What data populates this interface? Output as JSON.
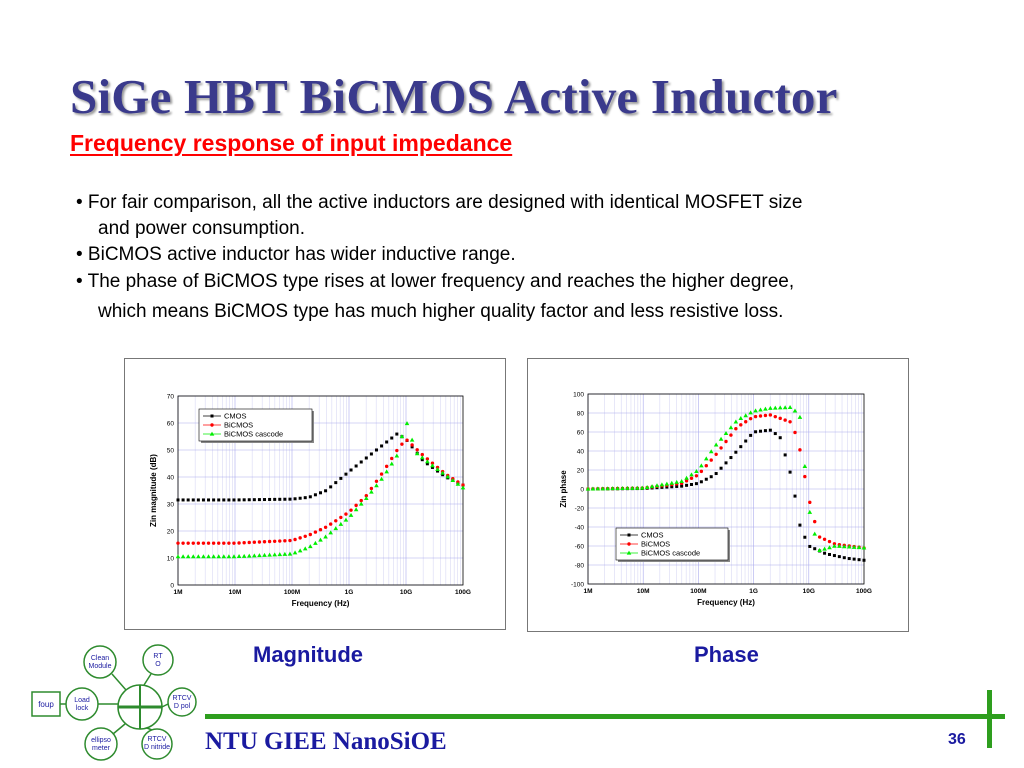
{
  "slide": {
    "title": "SiGe HBT BiCMOS Active Inductor",
    "subtitle": "Frequency response of input impedance",
    "bullets": [
      "• For fair comparison, all the active inductors are designed with identical MOSFET size",
      "and power consumption.",
      "• BiCMOS active inductor has wider inductive range.",
      "• The phase of BiCMOS type rises at lower frequency and reaches the higher degree,",
      "which means BiCMOS type has much higher quality factor and less resistive loss."
    ],
    "captions": {
      "magnitude": "Magnitude",
      "phase": "Phase"
    },
    "footer": "NTU GIEE NanoSiOE",
    "page_number": "36"
  },
  "logo": {
    "nodes": [
      "Clean Module",
      "RTO",
      "RTCVD poly",
      "RTCVD nitride",
      "ellipsometer",
      "Load lock",
      "foup"
    ],
    "colors": {
      "ring": "#2e8b2e",
      "text": "#1a1aa0"
    }
  },
  "colors": {
    "title": "#3a3a8c",
    "subtitle": "#ff0000",
    "accent": "#1a1aa0",
    "rule": "#2e9e1e",
    "cmos": "#000000",
    "bicmos": "#ff0000",
    "cascode": "#00ee00"
  },
  "chart_data": [
    {
      "type": "scatter",
      "xscale": "log",
      "xlabel": "Frequency (Hz)",
      "ylabel": "Zin magnitude (dB)",
      "xlim": [
        1000000,
        100000000000
      ],
      "ylim": [
        0,
        70
      ],
      "xticks": [
        1000000,
        10000000,
        100000000,
        1000000000,
        10000000000,
        100000000000
      ],
      "xticklabels": [
        "1M",
        "10M",
        "100M",
        "1G",
        "10G",
        "100G"
      ],
      "yticks": [
        0,
        10,
        20,
        30,
        40,
        50,
        60,
        70
      ],
      "yticklabels": [
        "0",
        "10",
        "20",
        "30",
        "40",
        "50",
        "60",
        "70"
      ],
      "grid": true,
      "legend": "top-left",
      "series": [
        {
          "name": "CMOS",
          "marker": "square",
          "color": "#000000",
          "points": [
            [
              1000000,
              31.5
            ],
            [
              10000000,
              31.5
            ],
            [
              100000000,
              31.8
            ],
            [
              200000000,
              32.5
            ],
            [
              400000000,
              35
            ],
            [
              1000000000,
              42
            ],
            [
              2000000000,
              47
            ],
            [
              4000000000,
              52
            ],
            [
              7000000000,
              56
            ],
            [
              10000000000,
              54
            ],
            [
              20000000000,
              46
            ],
            [
              50000000000,
              40
            ],
            [
              100000000000,
              37
            ]
          ]
        },
        {
          "name": "BiCMOS",
          "marker": "circle",
          "color": "#ff0000",
          "points": [
            [
              1000000,
              15.5
            ],
            [
              10000000,
              15.5
            ],
            [
              100000000,
              16.5
            ],
            [
              200000000,
              18.5
            ],
            [
              400000000,
              21.5
            ],
            [
              1000000000,
              27
            ],
            [
              2000000000,
              33
            ],
            [
              4000000000,
              42
            ],
            [
              7000000000,
              50
            ],
            [
              10000000000,
              54
            ],
            [
              20000000000,
              48
            ],
            [
              50000000000,
              41
            ],
            [
              100000000000,
              37
            ]
          ]
        },
        {
          "name": "BiCMOS cascode",
          "marker": "triangle",
          "color": "#00ee00",
          "points": [
            [
              1000000,
              10.5
            ],
            [
              10000000,
              10.5
            ],
            [
              100000000,
              11.5
            ],
            [
              200000000,
              14
            ],
            [
              400000000,
              18
            ],
            [
              1000000000,
              25
            ],
            [
              2000000000,
              32
            ],
            [
              4000000000,
              40
            ],
            [
              7000000000,
              48
            ],
            [
              10000000000,
              61
            ],
            [
              15000000000,
              49
            ],
            [
              30000000000,
              44
            ],
            [
              100000000000,
              36
            ]
          ]
        }
      ]
    },
    {
      "type": "scatter",
      "xscale": "log",
      "xlabel": "Frequency (Hz)",
      "ylabel": "Zin phase",
      "xlim": [
        1000000,
        100000000000
      ],
      "ylim": [
        -100,
        100
      ],
      "xticks": [
        1000000,
        10000000,
        100000000,
        1000000000,
        10000000000,
        100000000000
      ],
      "xticklabels": [
        "1M",
        "10M",
        "100M",
        "1G",
        "10G",
        "100G"
      ],
      "yticks": [
        -100,
        -80,
        -60,
        -40,
        -20,
        0,
        20,
        40,
        60,
        80,
        100
      ],
      "yticklabels": [
        "-100",
        "-80",
        "-60",
        "-40",
        "-20",
        "0",
        "20",
        "40",
        "60",
        "80",
        "100"
      ],
      "grid": true,
      "legend": "bottom-left",
      "series": [
        {
          "name": "CMOS",
          "marker": "square",
          "color": "#000000",
          "points": [
            [
              1000000,
              0
            ],
            [
              10000000,
              0.5
            ],
            [
              50000000,
              3
            ],
            [
              100000000,
              6
            ],
            [
              200000000,
              15
            ],
            [
              500000000,
              40
            ],
            [
              1000000000,
              60
            ],
            [
              2000000000,
              62
            ],
            [
              3000000000,
              55
            ],
            [
              5000000000,
              10
            ],
            [
              7000000000,
              -40
            ],
            [
              10000000000,
              -60
            ],
            [
              20000000000,
              -68
            ],
            [
              50000000000,
              -73
            ],
            [
              100000000000,
              -75
            ]
          ]
        },
        {
          "name": "BiCMOS",
          "marker": "circle",
          "color": "#ff0000",
          "points": [
            [
              1000000,
              0
            ],
            [
              10000000,
              1
            ],
            [
              50000000,
              6
            ],
            [
              100000000,
              15
            ],
            [
              200000000,
              35
            ],
            [
              500000000,
              65
            ],
            [
              1000000000,
              76
            ],
            [
              2000000000,
              78
            ],
            [
              5000000000,
              70
            ],
            [
              7000000000,
              40
            ],
            [
              10000000000,
              -10
            ],
            [
              15000000000,
              -50
            ],
            [
              30000000000,
              -58
            ],
            [
              100000000000,
              -62
            ]
          ]
        },
        {
          "name": "BiCMOS cascode",
          "marker": "triangle",
          "color": "#00ee00",
          "points": [
            [
              1000000,
              0
            ],
            [
              10000000,
              1
            ],
            [
              50000000,
              8
            ],
            [
              100000000,
              20
            ],
            [
              200000000,
              45
            ],
            [
              500000000,
              72
            ],
            [
              1000000000,
              82
            ],
            [
              2000000000,
              85
            ],
            [
              5000000000,
              86
            ],
            [
              7000000000,
              75
            ],
            [
              10000000000,
              -20
            ],
            [
              15000000000,
              -65
            ],
            [
              30000000000,
              -60
            ],
            [
              100000000000,
              -62
            ]
          ]
        }
      ]
    }
  ]
}
